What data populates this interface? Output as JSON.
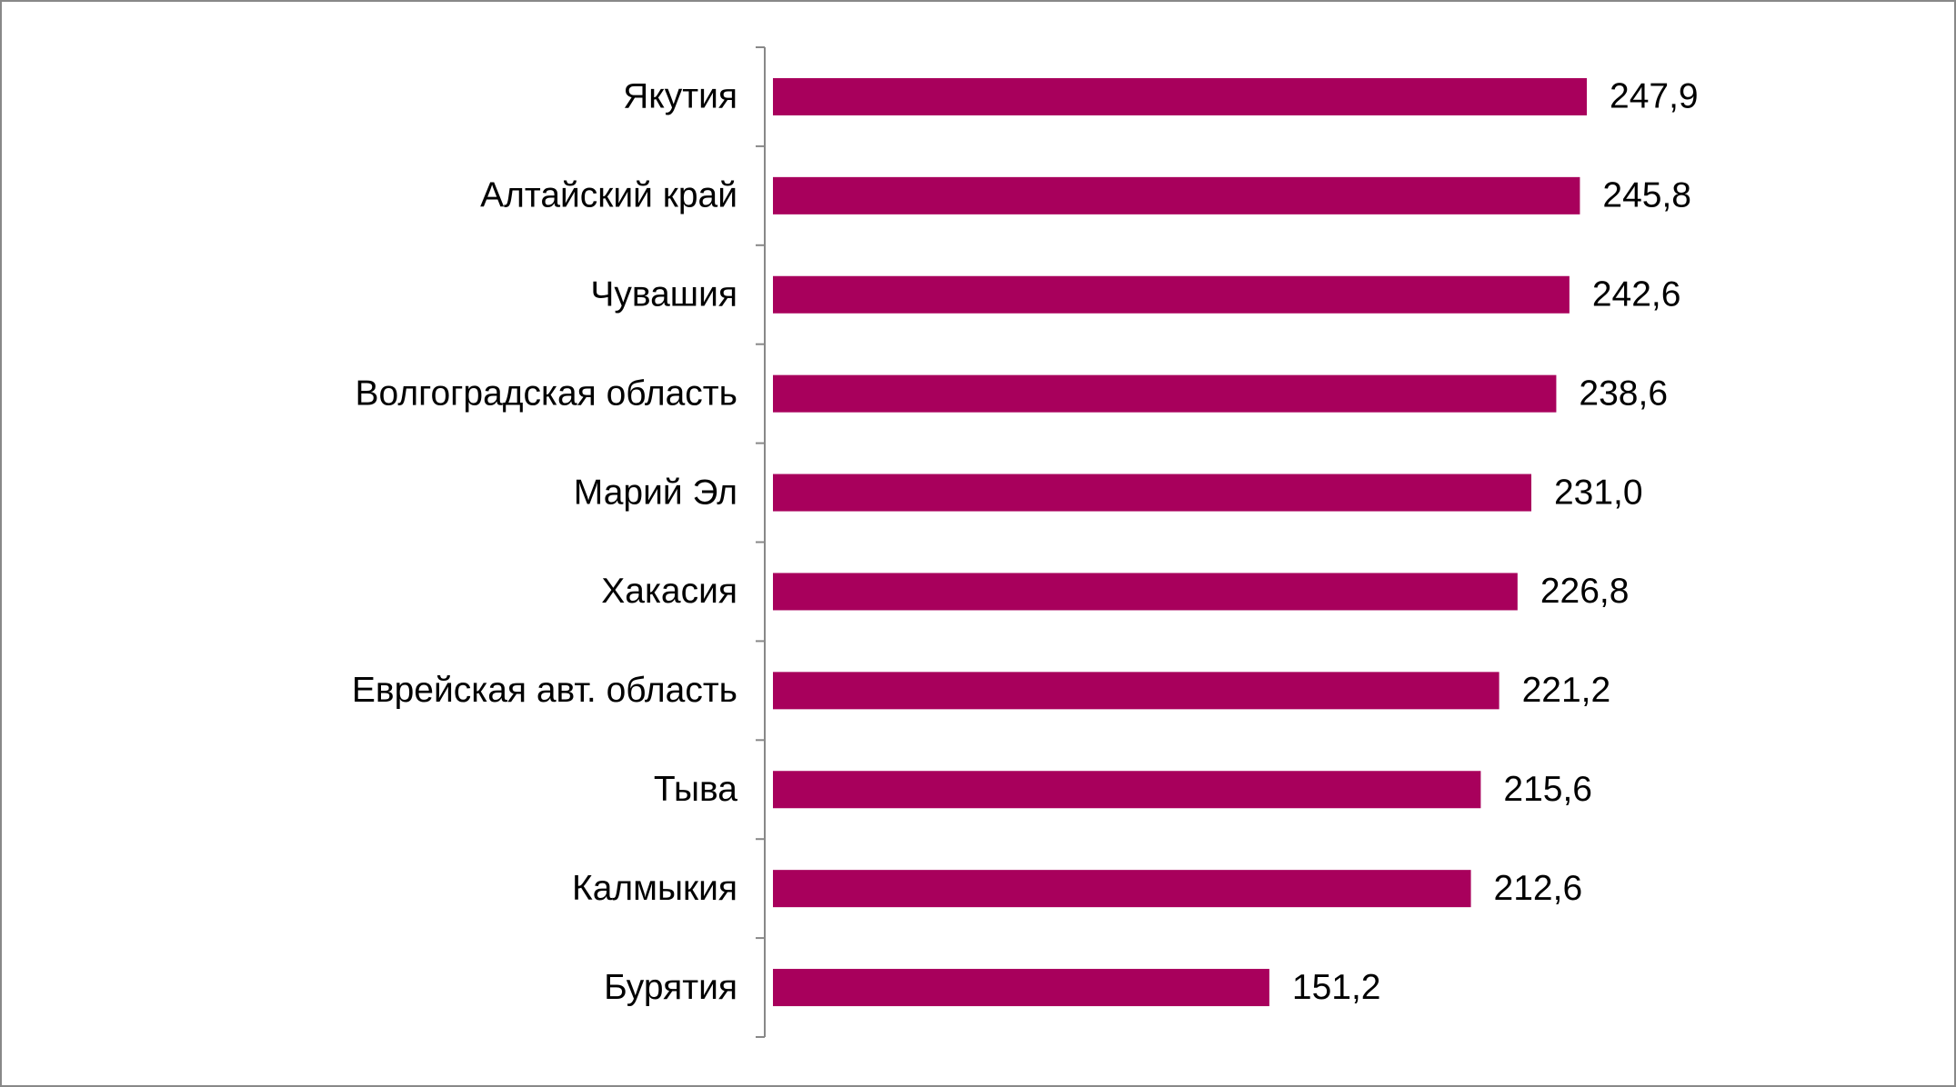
{
  "chart_data": {
    "type": "bar",
    "orientation": "horizontal",
    "categories": [
      "Якутия",
      "Алтайский край",
      "Чувашия",
      "Волгоградская область",
      "Марий Эл",
      "Хакасия",
      "Еврейская авт. область",
      "Тыва",
      "Калмыкия",
      "Бурятия"
    ],
    "values": [
      247.9,
      245.8,
      242.6,
      238.6,
      231.0,
      226.8,
      221.2,
      215.6,
      212.6,
      151.2
    ],
    "value_labels": [
      "247,9",
      "245,8",
      "242,6",
      "238,6",
      "231,0",
      "226,8",
      "221,2",
      "215,6",
      "212,6",
      "151,2"
    ],
    "color": "#a8005c"
  }
}
